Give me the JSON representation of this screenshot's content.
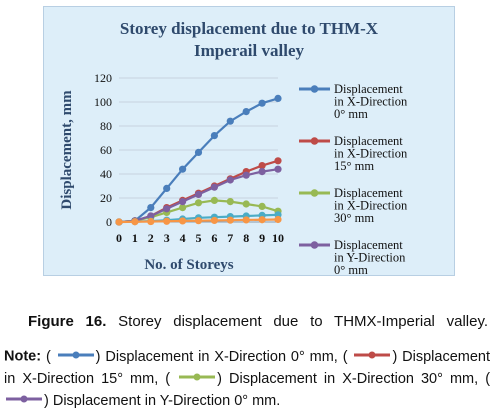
{
  "chart_data": {
    "type": "line",
    "title": "Storey displacement due to THM-X Imperail valley",
    "title_lines": [
      "Storey displacement due to THM-X",
      "Imperail valley"
    ],
    "xlabel": "No. of Storeys",
    "ylabel": "Displacement, mm",
    "x": [
      0,
      1,
      2,
      3,
      4,
      5,
      6,
      7,
      8,
      9,
      10
    ],
    "xlim": [
      0,
      10
    ],
    "ylim": [
      0,
      120
    ],
    "yticks": [
      0,
      20,
      40,
      60,
      80,
      100,
      120
    ],
    "grid": true,
    "legend_position": "right",
    "series": [
      {
        "name_lines": [
          "Displacement",
          "in X-Direction",
          "0° mm"
        ],
        "color": "#4a7ebb",
        "values": [
          0,
          1,
          12,
          28,
          44,
          58,
          72,
          84,
          92,
          99,
          103
        ]
      },
      {
        "name_lines": [
          "Displacement",
          "in X-Direction",
          "15° mm"
        ],
        "color": "#be4b48",
        "values": [
          0,
          1,
          5,
          12,
          18,
          24,
          30,
          36,
          42,
          47,
          51
        ]
      },
      {
        "name_lines": [
          "Displacement",
          "in X-Direction",
          "30° mm"
        ],
        "color": "#98b954",
        "values": [
          0,
          1,
          4,
          8,
          12,
          16,
          18,
          17,
          15,
          13,
          9
        ]
      },
      {
        "name_lines": [
          "Displacement",
          "in Y-Direction",
          "0° mm"
        ],
        "color": "#7d60a0",
        "values": [
          0,
          1,
          5,
          11,
          17,
          23,
          29,
          35,
          39,
          42,
          44
        ]
      },
      {
        "name_lines": [],
        "color": "#4bacc6",
        "values": [
          0,
          0.3,
          0.8,
          1.5,
          2.5,
          3.5,
          4,
          4.5,
          5,
          5.5,
          6
        ]
      },
      {
        "name_lines": [],
        "color": "#f79646",
        "values": [
          0,
          0.2,
          0.4,
          0.6,
          0.9,
          1.1,
          1.3,
          1.5,
          1.7,
          1.9,
          2.1
        ]
      }
    ]
  },
  "caption": {
    "label": "Figure 16.",
    "text": "Storey displacement due to THMX-Imperial valley."
  },
  "note": {
    "label": "Note:",
    "items": [
      {
        "color": "#4a7ebb",
        "text": "Displacement in X-Direction 0° mm,"
      },
      {
        "color": "#be4b48",
        "text": "Displacement in X-Direction 15° mm,"
      },
      {
        "color": "#98b954",
        "text": "Displacement in X-Direction 30° mm,"
      },
      {
        "color": "#7d60a0",
        "text": "Displacement in Y-Direction 0° mm."
      }
    ]
  }
}
